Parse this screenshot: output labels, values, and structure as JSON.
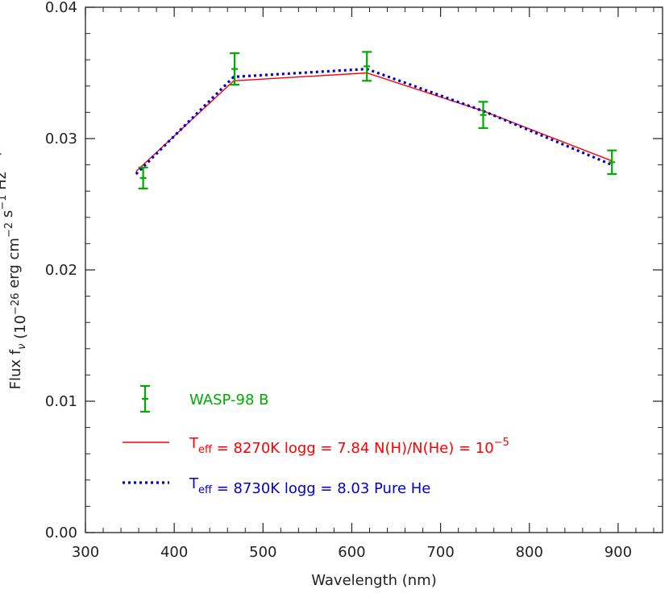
{
  "chart_data": {
    "type": "scatter",
    "xlabel": "Wavelength (nm)",
    "ylabel": {
      "parts": [
        {
          "t": "Flux f",
          "sub": ""
        },
        {
          "t": "",
          "sub": "ν"
        },
        {
          "t": " (10",
          "sup": ""
        },
        {
          "t": "",
          "sup": "−26"
        },
        {
          "t": " erg cm",
          "sup": ""
        },
        {
          "t": "",
          "sup": "−2"
        },
        {
          "t": " s",
          "sup": ""
        },
        {
          "t": "",
          "sup": "−1"
        },
        {
          "t": " Hz",
          "sup": ""
        },
        {
          "t": "",
          "sup": "−1"
        },
        {
          "t": ")",
          "sup": ""
        }
      ]
    },
    "xlim": [
      300,
      950
    ],
    "ylim": [
      0.0,
      0.04
    ],
    "x_ticks": [
      300,
      400,
      500,
      600,
      700,
      800,
      900
    ],
    "x_tick_labels": [
      "300",
      "400",
      "500",
      "600",
      "700",
      "800",
      "900"
    ],
    "y_ticks": [
      0.0,
      0.01,
      0.02,
      0.03,
      0.04
    ],
    "y_tick_labels": [
      "0.00",
      "0.01",
      "0.02",
      "0.03",
      "0.04"
    ],
    "grid": false,
    "legend_position": "bottom-left",
    "series": [
      {
        "name": "WASP-98 B",
        "kind": "errorbar",
        "color": "#00aa00",
        "x": [
          365,
          468,
          617,
          748,
          893
        ],
        "y": [
          0.027,
          0.0353,
          0.0355,
          0.0318,
          0.0282
        ],
        "yerr": [
          0.0008,
          0.0012,
          0.0011,
          0.001,
          0.0009
        ]
      },
      {
        "name": "Teff = 8270K logg = 7.84 N(H)/N(He) = 10^-5",
        "kind": "line",
        "color": "#ff0000",
        "style": "solid",
        "x": [
          357,
          467,
          617,
          748,
          893
        ],
        "y": [
          0.0275,
          0.0344,
          0.035,
          0.0321,
          0.0283
        ]
      },
      {
        "name": "Teff = 8730K logg = 8.03 Pure He",
        "kind": "line",
        "color": "#0000cc",
        "style": "dotted",
        "x": [
          357,
          467,
          617,
          748,
          893
        ],
        "y": [
          0.0273,
          0.0347,
          0.0353,
          0.0321,
          0.028
        ]
      }
    ],
    "legend": [
      {
        "series": 0,
        "text": "WASP-98 B"
      },
      {
        "series": 1,
        "parts": [
          {
            "t": "T"
          },
          {
            "sub": "eff"
          },
          {
            "t": " = 8270K   logg = 7.84   N(H)/N(He) = 10"
          },
          {
            "sup": "−5"
          }
        ]
      },
      {
        "series": 2,
        "parts": [
          {
            "t": "T"
          },
          {
            "sub": "eff"
          },
          {
            "t": " = 8730K    logg = 8.03    Pure He"
          }
        ]
      }
    ]
  }
}
